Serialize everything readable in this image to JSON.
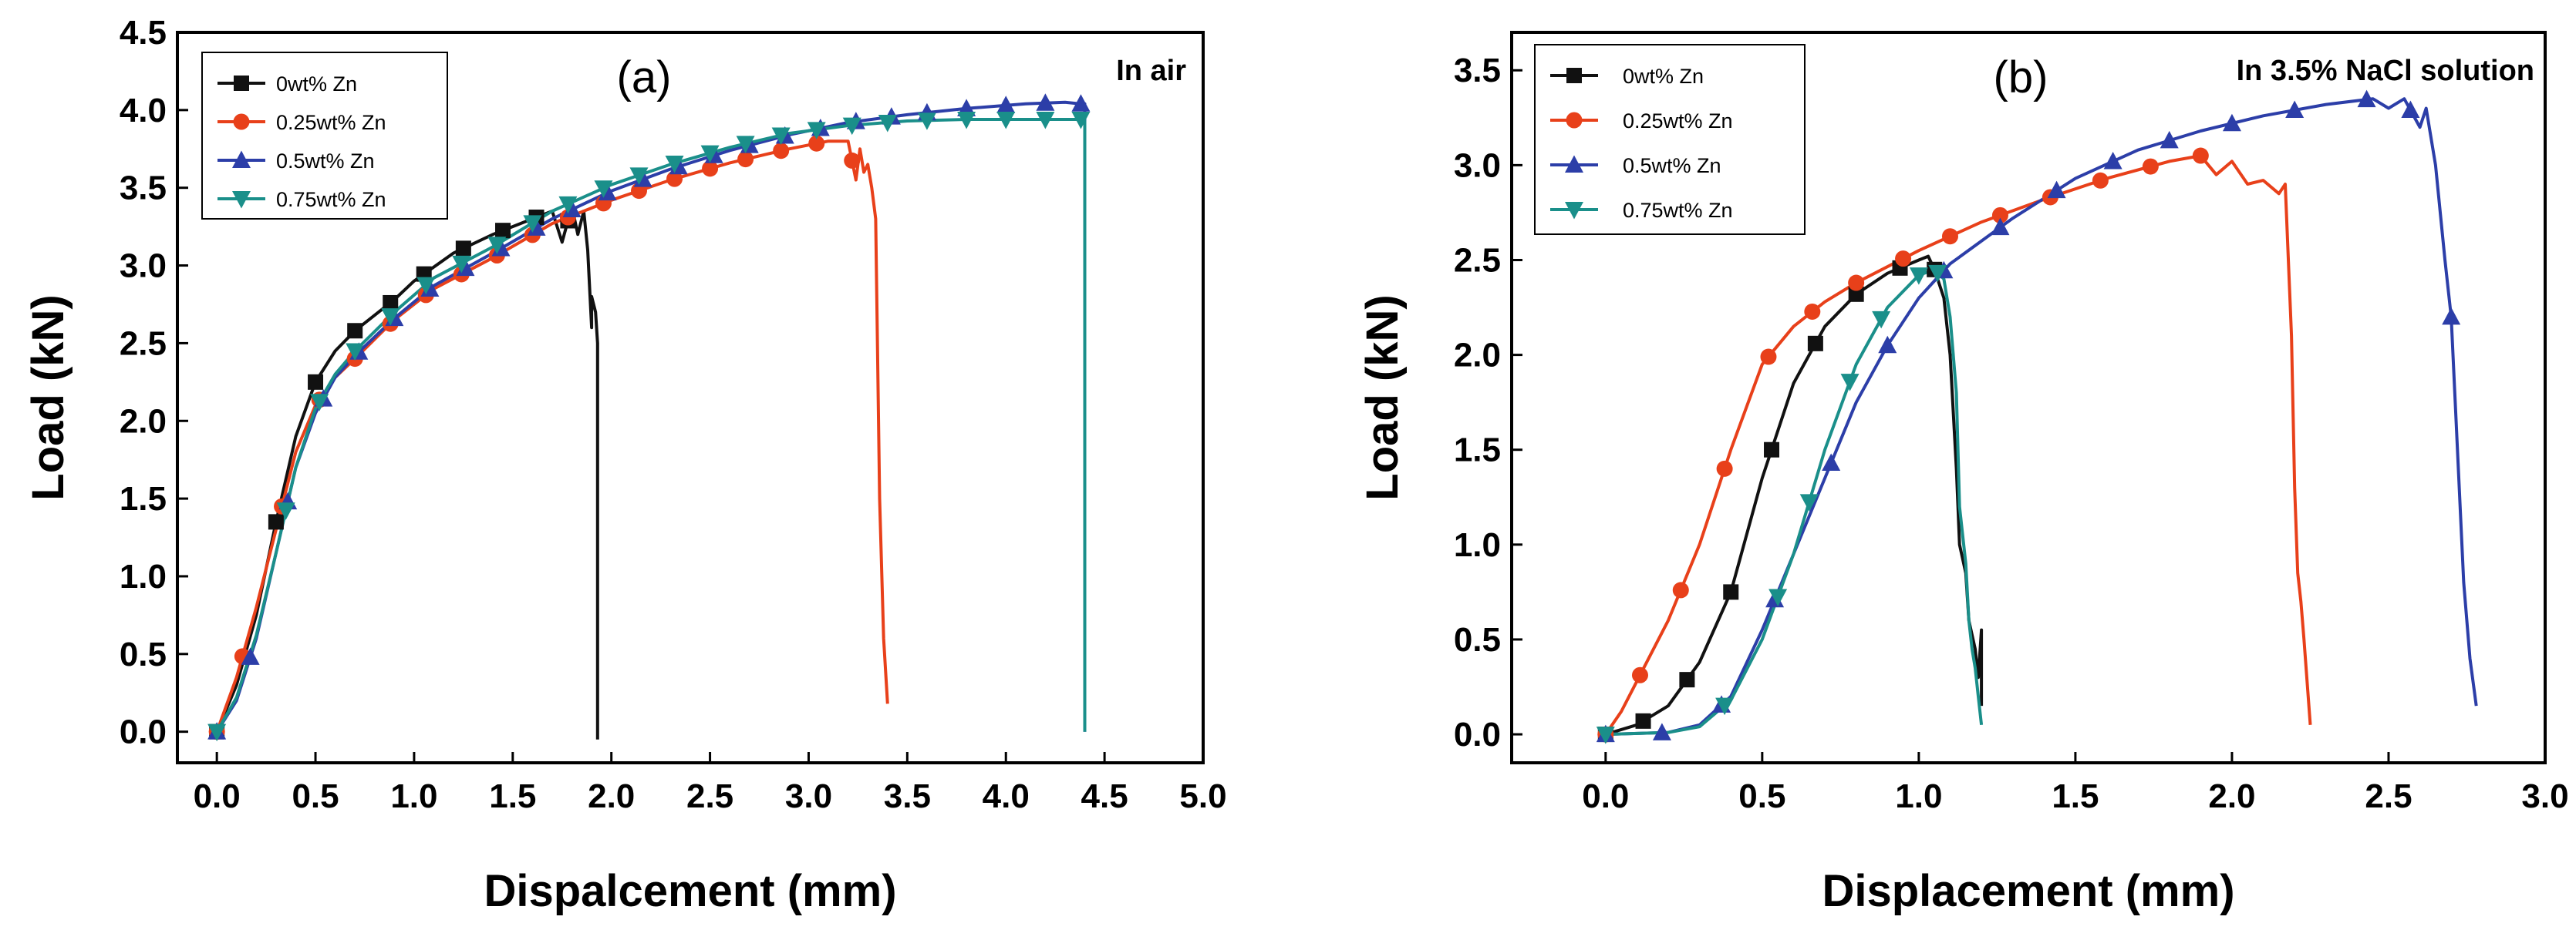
{
  "chart_data": [
    {
      "type": "line",
      "panel_label": "(a)",
      "condition": "In air",
      "xlabel": "Dispalcement (mm)",
      "ylabel": "Load (kN)",
      "xlim": [
        -0.2,
        5.0
      ],
      "ylim": [
        -0.2,
        4.5
      ],
      "xticks": [
        "0.0",
        "0.5",
        "1.0",
        "1.5",
        "2.0",
        "2.5",
        "3.0",
        "3.5",
        "4.0",
        "4.5",
        "5.0"
      ],
      "yticks": [
        "0.0",
        "0.5",
        "1.0",
        "1.5",
        "2.0",
        "2.5",
        "3.0",
        "3.5",
        "4.0",
        "4.5"
      ],
      "legend_position": "top-left",
      "series": [
        {
          "name": "0wt% Zn",
          "color": "#111111",
          "marker": "square",
          "x": [
            0,
            0.1,
            0.2,
            0.3,
            0.4,
            0.5,
            0.6,
            0.7,
            0.8,
            0.9,
            1.0,
            1.2,
            1.4,
            1.6,
            1.7,
            1.75,
            1.8,
            1.83,
            1.86,
            1.88,
            1.9,
            1.9,
            1.92,
            1.93,
            1.93
          ],
          "y": [
            0,
            0.3,
            0.75,
            1.35,
            1.9,
            2.25,
            2.45,
            2.58,
            2.68,
            2.78,
            2.9,
            3.08,
            3.2,
            3.3,
            3.35,
            3.15,
            3.38,
            3.2,
            3.35,
            3.1,
            2.6,
            2.8,
            2.7,
            2.5,
            -0.05
          ],
          "marker_x": [
            0,
            0.3,
            0.5,
            0.7,
            0.88,
            1.05,
            1.25,
            1.45,
            1.62,
            1.78
          ]
        },
        {
          "name": "0.25wt% Zn",
          "color": "#e8401a",
          "marker": "circle",
          "x": [
            0,
            0.1,
            0.2,
            0.3,
            0.4,
            0.5,
            0.6,
            0.7,
            0.9,
            1.1,
            1.4,
            1.7,
            2.0,
            2.3,
            2.6,
            2.9,
            3.1,
            3.2,
            3.24,
            3.26,
            3.28,
            3.3,
            3.32,
            3.34,
            3.36,
            3.38,
            3.4
          ],
          "y": [
            0,
            0.35,
            0.8,
            1.3,
            1.8,
            2.1,
            2.28,
            2.4,
            2.65,
            2.85,
            3.05,
            3.27,
            3.42,
            3.55,
            3.66,
            3.75,
            3.8,
            3.8,
            3.55,
            3.75,
            3.6,
            3.65,
            3.5,
            3.3,
            1.5,
            0.6,
            0.18
          ],
          "marker_x": [
            0,
            0.13,
            0.33,
            0.52,
            0.7,
            0.88,
            1.06,
            1.24,
            1.42,
            1.6,
            1.78,
            1.96,
            2.14,
            2.32,
            2.5,
            2.68,
            2.86,
            3.04,
            3.22
          ]
        },
        {
          "name": "0.5wt% Zn",
          "color": "#2c3ea8",
          "marker": "triangle-up",
          "x": [
            0,
            0.1,
            0.2,
            0.3,
            0.4,
            0.5,
            0.6,
            0.7,
            0.9,
            1.1,
            1.4,
            1.7,
            2.0,
            2.3,
            2.6,
            2.9,
            3.2,
            3.5,
            3.8,
            4.1,
            4.3,
            4.38,
            4.4,
            4.4
          ],
          "y": [
            0,
            0.2,
            0.6,
            1.15,
            1.7,
            2.05,
            2.28,
            2.42,
            2.66,
            2.87,
            3.08,
            3.3,
            3.48,
            3.62,
            3.74,
            3.84,
            3.92,
            3.97,
            4.01,
            4.04,
            4.05,
            4.04,
            4.04,
            0
          ],
          "marker_x": [
            0,
            0.17,
            0.36,
            0.54,
            0.72,
            0.9,
            1.08,
            1.26,
            1.44,
            1.62,
            1.8,
            1.98,
            2.16,
            2.34,
            2.52,
            2.7,
            2.88,
            3.06,
            3.24,
            3.42,
            3.6,
            3.8,
            4.0,
            4.2,
            4.38
          ]
        },
        {
          "name": "0.75wt% Zn",
          "color": "#1a8f8a",
          "marker": "triangle-down",
          "x": [
            0,
            0.1,
            0.2,
            0.3,
            0.4,
            0.5,
            0.6,
            0.7,
            0.9,
            1.1,
            1.4,
            1.7,
            2.0,
            2.3,
            2.6,
            2.9,
            3.2,
            3.5,
            3.8,
            4.1,
            4.3,
            4.38,
            4.4,
            4.4
          ],
          "y": [
            0,
            0.22,
            0.62,
            1.15,
            1.7,
            2.08,
            2.3,
            2.45,
            2.7,
            2.92,
            3.12,
            3.35,
            3.52,
            3.65,
            3.76,
            3.85,
            3.9,
            3.93,
            3.94,
            3.94,
            3.94,
            3.94,
            3.93,
            0
          ],
          "marker_x": [
            0,
            0.35,
            0.52,
            0.7,
            0.88,
            1.06,
            1.24,
            1.42,
            1.6,
            1.78,
            1.96,
            2.14,
            2.32,
            2.5,
            2.68,
            2.86,
            3.04,
            3.22,
            3.4,
            3.6,
            3.8,
            4.0,
            4.2,
            4.38
          ]
        }
      ]
    },
    {
      "type": "line",
      "panel_label": "(b)",
      "condition": "In 3.5% NaCl solution",
      "xlabel": "Displacement (mm)",
      "ylabel": "Load (kN)",
      "xlim": [
        -0.3,
        3.0
      ],
      "ylim": [
        -0.15,
        3.7
      ],
      "xticks": [
        "0.0",
        "0.5",
        "1.0",
        "1.5",
        "2.0",
        "2.5",
        "3.0"
      ],
      "yticks": [
        "0.0",
        "0.5",
        "1.0",
        "1.5",
        "2.0",
        "2.5",
        "3.0",
        "3.5"
      ],
      "legend_position": "top-left",
      "series": [
        {
          "name": "0wt% Zn",
          "color": "#111111",
          "marker": "square",
          "x": [
            0,
            0.1,
            0.2,
            0.3,
            0.4,
            0.5,
            0.6,
            0.7,
            0.8,
            0.9,
            1.0,
            1.03,
            1.05,
            1.08,
            1.1,
            1.12,
            1.13,
            1.15,
            1.16,
            1.18,
            1.19,
            1.2,
            1.2
          ],
          "y": [
            0,
            0.05,
            0.15,
            0.38,
            0.75,
            1.35,
            1.85,
            2.15,
            2.32,
            2.43,
            2.5,
            2.52,
            2.45,
            2.3,
            2.0,
            1.4,
            1.0,
            0.85,
            0.6,
            0.45,
            0.3,
            0.55,
            0.15
          ],
          "marker_x": [
            0,
            0.12,
            0.26,
            0.4,
            0.53,
            0.67,
            0.8,
            0.94,
            1.05
          ]
        },
        {
          "name": "0.25wt% Zn",
          "color": "#e8401a",
          "marker": "circle",
          "x": [
            0,
            0.05,
            0.1,
            0.2,
            0.3,
            0.4,
            0.5,
            0.6,
            0.7,
            0.8,
            1.0,
            1.2,
            1.4,
            1.6,
            1.8,
            1.9,
            1.95,
            2.0,
            2.05,
            2.1,
            2.15,
            2.17,
            2.19,
            2.2,
            2.21,
            2.22,
            2.23,
            2.25
          ],
          "y": [
            0,
            0.12,
            0.28,
            0.6,
            1.0,
            1.5,
            1.95,
            2.15,
            2.28,
            2.38,
            2.55,
            2.7,
            2.82,
            2.93,
            3.02,
            3.05,
            2.95,
            3.02,
            2.9,
            2.92,
            2.85,
            2.9,
            2.1,
            1.3,
            0.85,
            0.7,
            0.5,
            0.05
          ],
          "marker_x": [
            0,
            0.11,
            0.24,
            0.38,
            0.52,
            0.66,
            0.8,
            0.95,
            1.1,
            1.26,
            1.42,
            1.58,
            1.74,
            1.9
          ]
        },
        {
          "name": "0.5wt% Zn",
          "color": "#2c3ea8",
          "marker": "triangle-up",
          "x": [
            0,
            0.2,
            0.3,
            0.4,
            0.5,
            0.6,
            0.7,
            0.8,
            0.9,
            1.0,
            1.1,
            1.3,
            1.5,
            1.7,
            1.9,
            2.1,
            2.3,
            2.45,
            2.5,
            2.55,
            2.6,
            2.62,
            2.65,
            2.68,
            2.7,
            2.72,
            2.74,
            2.76,
            2.78
          ],
          "y": [
            0,
            0.01,
            0.05,
            0.2,
            0.55,
            0.95,
            1.35,
            1.75,
            2.05,
            2.3,
            2.48,
            2.72,
            2.93,
            3.08,
            3.18,
            3.26,
            3.32,
            3.35,
            3.3,
            3.35,
            3.2,
            3.3,
            3.0,
            2.5,
            2.2,
            1.5,
            0.8,
            0.4,
            0.15
          ],
          "marker_x": [
            0,
            0.18,
            0.37,
            0.54,
            0.72,
            0.9,
            1.08,
            1.26,
            1.44,
            1.62,
            1.8,
            2.0,
            2.2,
            2.43,
            2.57,
            2.7
          ]
        },
        {
          "name": "0.75wt% Zn",
          "color": "#1a8f8a",
          "marker": "triangle-down",
          "x": [
            0,
            0.2,
            0.3,
            0.4,
            0.5,
            0.6,
            0.7,
            0.8,
            0.9,
            1.0,
            1.05,
            1.08,
            1.1,
            1.12,
            1.13,
            1.15,
            1.16,
            1.17,
            1.18,
            1.19,
            1.2
          ],
          "y": [
            0,
            0.01,
            0.04,
            0.18,
            0.5,
            0.95,
            1.5,
            1.95,
            2.25,
            2.42,
            2.45,
            2.4,
            2.2,
            1.8,
            1.2,
            0.9,
            0.6,
            0.45,
            0.35,
            0.2,
            0.05
          ],
          "marker_x": [
            0,
            0.38,
            0.55,
            0.65,
            0.78,
            0.88,
            1.0,
            1.06
          ]
        }
      ]
    }
  ]
}
